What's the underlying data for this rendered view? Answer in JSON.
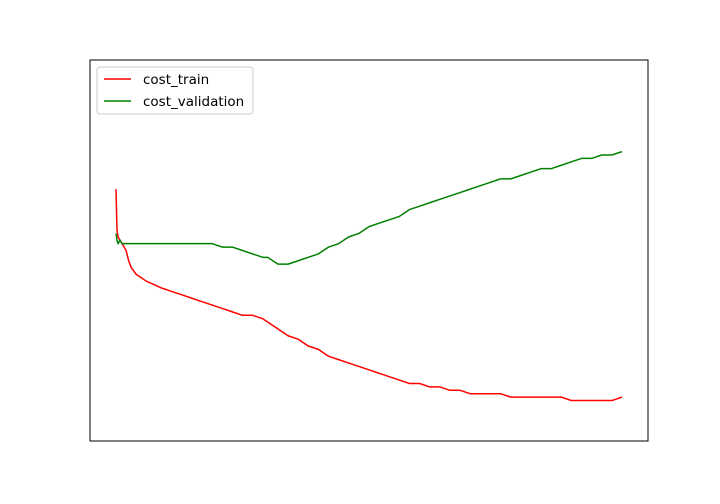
{
  "chart_data": {
    "type": "line",
    "title": "",
    "xlabel": "",
    "ylabel": "",
    "xlim": [
      0,
      1000
    ],
    "ylim": [
      0,
      1
    ],
    "grid": false,
    "ticks_visible": false,
    "legend": {
      "placement": "top-left",
      "entries": [
        "cost_train",
        "cost_validation"
      ]
    },
    "series": [
      {
        "name": "cost_train",
        "color": "#ff0000",
        "x": [
          0,
          2,
          4,
          8,
          12,
          16,
          20,
          25,
          30,
          40,
          50,
          60,
          75,
          90,
          110,
          130,
          150,
          170,
          190,
          210,
          230,
          250,
          270,
          290,
          300,
          310,
          320,
          340,
          360,
          380,
          400,
          420,
          440,
          460,
          480,
          500,
          520,
          540,
          560,
          580,
          600,
          620,
          640,
          660,
          680,
          700,
          720,
          740,
          760,
          780,
          800,
          820,
          840,
          860,
          880,
          900,
          920,
          940,
          960,
          980,
          1000
        ],
        "values": [
          0.68,
          0.56,
          0.54,
          0.53,
          0.52,
          0.51,
          0.5,
          0.47,
          0.45,
          0.43,
          0.42,
          0.41,
          0.4,
          0.39,
          0.38,
          0.37,
          0.36,
          0.35,
          0.34,
          0.33,
          0.32,
          0.31,
          0.31,
          0.3,
          0.29,
          0.28,
          0.27,
          0.25,
          0.24,
          0.22,
          0.21,
          0.19,
          0.18,
          0.17,
          0.16,
          0.15,
          0.14,
          0.13,
          0.12,
          0.11,
          0.11,
          0.1,
          0.1,
          0.09,
          0.09,
          0.08,
          0.08,
          0.08,
          0.08,
          0.07,
          0.07,
          0.07,
          0.07,
          0.07,
          0.07,
          0.06,
          0.06,
          0.06,
          0.06,
          0.06,
          0.07
        ]
      },
      {
        "name": "cost_validation",
        "color": "#008000",
        "x": [
          0,
          2,
          4,
          8,
          12,
          16,
          20,
          25,
          30,
          40,
          50,
          60,
          75,
          90,
          110,
          130,
          150,
          170,
          190,
          210,
          230,
          250,
          270,
          290,
          300,
          310,
          320,
          340,
          360,
          380,
          400,
          420,
          440,
          460,
          480,
          500,
          520,
          540,
          560,
          580,
          600,
          620,
          640,
          660,
          680,
          700,
          720,
          740,
          760,
          780,
          800,
          820,
          840,
          860,
          880,
          900,
          920,
          940,
          960,
          980,
          1000
        ],
        "values": [
          0.55,
          0.53,
          0.52,
          0.53,
          0.52,
          0.52,
          0.52,
          0.52,
          0.52,
          0.52,
          0.52,
          0.52,
          0.52,
          0.52,
          0.52,
          0.52,
          0.52,
          0.52,
          0.52,
          0.51,
          0.51,
          0.5,
          0.49,
          0.48,
          0.48,
          0.47,
          0.46,
          0.46,
          0.47,
          0.48,
          0.49,
          0.51,
          0.52,
          0.54,
          0.55,
          0.57,
          0.58,
          0.59,
          0.6,
          0.62,
          0.63,
          0.64,
          0.65,
          0.66,
          0.67,
          0.68,
          0.69,
          0.7,
          0.71,
          0.71,
          0.72,
          0.73,
          0.74,
          0.74,
          0.75,
          0.76,
          0.77,
          0.77,
          0.78,
          0.78,
          0.79
        ]
      }
    ]
  }
}
